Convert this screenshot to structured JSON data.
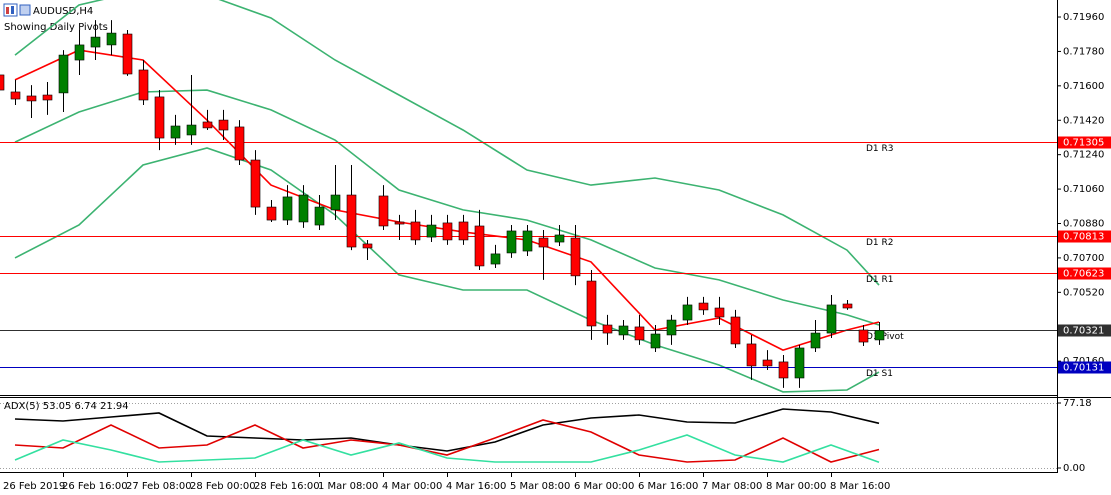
{
  "chart_data": [
    {
      "type": "candlestick",
      "title": "AUDUSD,H4",
      "subtitle": "Showing Daily Pivots",
      "categories": [
        "26 Feb 2019",
        null,
        null,
        null,
        "26 Feb 16:00",
        null,
        null,
        null,
        "27 Feb 08:00",
        null,
        null,
        null,
        "28 Feb 00:00",
        null,
        null,
        null,
        "28 Feb 16:00",
        null,
        null,
        null,
        "1 Mar 08:00",
        null,
        null,
        null,
        "4 Mar 00:00",
        null,
        null,
        null,
        "4 Mar 16:00",
        null,
        null,
        null,
        "5 Mar 08:00",
        null,
        null,
        null,
        "6 Mar 00:00",
        null,
        null,
        null,
        "6 Mar 16:00",
        null,
        null,
        null,
        "7 Mar 08:00",
        null,
        null,
        null,
        "8 Mar 00:00",
        null,
        null,
        null,
        "8 Mar 16:00",
        null,
        null,
        null
      ],
      "open": [
        0.71657,
        0.71568,
        0.71547,
        0.71552,
        0.71563,
        0.71735,
        0.71803,
        0.71814,
        0.71871,
        0.71683,
        0.71542,
        0.71327,
        0.71343,
        0.71411,
        0.71421,
        0.71385,
        0.71212,
        0.70966,
        0.70898,
        0.70888,
        0.70872,
        0.70951,
        0.71029,
        0.70773,
        0.71024,
        0.70888,
        0.70888,
        0.70809,
        0.70883,
        0.70888,
        0.70867,
        0.70668,
        0.70726,
        0.70736,
        0.70804,
        0.70783,
        0.70804,
        0.70579,
        0.70349,
        0.70297,
        0.70339,
        0.70229,
        0.70297,
        0.70375,
        0.70464,
        0.70438,
        0.70391,
        0.7025,
        0.70166,
        0.70156,
        0.70072,
        0.70229,
        0.70307,
        0.70459,
        0.70323,
        0.70271
      ],
      "high": [
        0.71683,
        0.71631,
        0.71604,
        0.7162,
        0.71787,
        0.71892,
        0.71944,
        0.71944,
        0.71892,
        0.71735,
        0.71578,
        0.71448,
        0.71657,
        0.71474,
        0.71474,
        0.71421,
        0.71264,
        0.71003,
        0.71081,
        0.71081,
        0.71029,
        0.71186,
        0.71186,
        0.70794,
        0.71081,
        0.70925,
        0.70951,
        0.70925,
        0.70925,
        0.70925,
        0.70951,
        0.70768,
        0.70872,
        0.70872,
        0.70846,
        0.70872,
        0.70872,
        0.70637,
        0.70402,
        0.70375,
        0.70402,
        0.70349,
        0.70402,
        0.70496,
        0.70496,
        0.70496,
        0.70428,
        0.70297,
        0.70218,
        0.70192,
        0.70245,
        0.70375,
        0.70506,
        0.7048,
        0.70349,
        0.70365
      ],
      "low": [
        0.71552,
        0.715,
        0.71432,
        0.71448,
        0.71463,
        0.71657,
        0.71735,
        0.71761,
        0.71652,
        0.715,
        0.71264,
        0.71291,
        0.71291,
        0.71369,
        0.71317,
        0.71186,
        0.70925,
        0.70888,
        0.70872,
        0.70857,
        0.70846,
        0.70898,
        0.70741,
        0.70689,
        0.70846,
        0.70794,
        0.70768,
        0.70783,
        0.70768,
        0.70768,
        0.70637,
        0.70647,
        0.707,
        0.7071,
        0.70585,
        0.70762,
        0.70558,
        0.70271,
        0.70245,
        0.70271,
        0.70245,
        0.70208,
        0.70245,
        0.70349,
        0.70402,
        0.70349,
        0.70229,
        0.70062,
        0.70114,
        0.7002,
        0.7002,
        0.70208,
        0.70281,
        0.70428,
        0.70239,
        0.70245
      ],
      "close": [
        0.71578,
        0.71531,
        0.71521,
        0.71526,
        0.71761,
        0.71814,
        0.71855,
        0.71876,
        0.71662,
        0.71526,
        0.71327,
        0.7139,
        0.71395,
        0.7138,
        0.71369,
        0.71212,
        0.70966,
        0.70898,
        0.71019,
        0.71029,
        0.70966,
        0.71029,
        0.70757,
        0.70752,
        0.70867,
        0.70877,
        0.70794,
        0.70872,
        0.70794,
        0.70794,
        0.70658,
        0.70721,
        0.70841,
        0.70841,
        0.70757,
        0.7082,
        0.70606,
        0.70344,
        0.70307,
        0.70344,
        0.70271,
        0.70302,
        0.70375,
        0.70454,
        0.70428,
        0.70391,
        0.7025,
        0.70135,
        0.70135,
        0.70072,
        0.70229,
        0.70307,
        0.70454,
        0.70438,
        0.7026,
        0.70321
      ],
      "up_color": "#008000",
      "down_color": "#ff0000",
      "ylim": [
        0.69983,
        0.72049
      ],
      "yticks": [
        {
          "value": 0.7196,
          "label": "0.71960"
        },
        {
          "value": 0.7178,
          "label": "0.71780"
        },
        {
          "value": 0.716,
          "label": "0.71600"
        },
        {
          "value": 0.7142,
          "label": "0.71420"
        },
        {
          "value": 0.7124,
          "label": "0.71240"
        },
        {
          "value": 0.7106,
          "label": "0.71060"
        },
        {
          "value": 0.7088,
          "label": "0.70880"
        },
        {
          "value": 0.707,
          "label": "0.70700"
        },
        {
          "value": 0.7052,
          "label": "0.70520"
        },
        {
          "value": 0.7016,
          "label": "0.70160"
        }
      ],
      "overlays": [
        {
          "type": "line",
          "color": "#3cb371",
          "x": [
            1,
            5,
            9,
            13,
            17,
            21,
            25,
            29,
            33,
            37,
            41,
            45,
            49,
            53,
            55
          ],
          "values": [
            0.71761,
            0.72023,
            0.72101,
            0.72075,
            0.71955,
            0.71735,
            0.71552,
            0.71369,
            0.7116,
            0.71081,
            0.71118,
            0.71055,
            0.70925,
            0.70741,
            0.70558
          ]
        },
        {
          "type": "line",
          "color": "#3cb371",
          "x": [
            1,
            5,
            9,
            13,
            17,
            21,
            25,
            29,
            33,
            37,
            41,
            45,
            49,
            53,
            55
          ],
          "values": [
            0.71306,
            0.71463,
            0.71568,
            0.71578,
            0.71474,
            0.71317,
            0.71055,
            0.70951,
            0.70898,
            0.70794,
            0.70647,
            0.70585,
            0.7048,
            0.70402,
            0.70349
          ]
        },
        {
          "type": "line",
          "color": "#3cb371",
          "x": [
            1,
            5,
            9,
            13,
            17,
            21,
            25,
            29,
            33,
            37,
            41,
            45,
            49,
            53,
            55
          ],
          "values": [
            0.707,
            0.70872,
            0.71186,
            0.71275,
            0.7116,
            0.70925,
            0.70611,
            0.70532,
            0.70532,
            0.70375,
            0.70245,
            0.7014,
            0.69999,
            0.70009,
            0.70103
          ]
        },
        {
          "type": "line",
          "color": "#ff0000",
          "x": [
            1,
            5,
            9,
            13,
            17,
            21,
            25,
            29,
            33,
            37,
            41,
            45,
            49,
            53,
            55
          ],
          "values": [
            0.71631,
            0.71787,
            0.71735,
            0.71421,
            0.71081,
            0.70951,
            0.70888,
            0.70836,
            0.70794,
            0.70679,
            0.70323,
            0.70386,
            0.70218,
            0.70323,
            0.70365
          ]
        }
      ],
      "levels": [
        {
          "label": "D1 R3",
          "value": 0.71305,
          "color": "#ff0000"
        },
        {
          "label": "D1 R2",
          "value": 0.70813,
          "color": "#ff0000"
        },
        {
          "label": "D1 R1",
          "value": 0.70623,
          "color": "#ff0000"
        },
        {
          "label": "D1 Pivot",
          "value": 0.70321,
          "color": "#303030"
        },
        {
          "label": "D1 S1",
          "value": 0.70131,
          "color": "#0000c0"
        }
      ]
    },
    {
      "type": "line",
      "title": "ADX(5) 53.05 6.74 21.94",
      "x": [
        1,
        4,
        7,
        10,
        13,
        16,
        19,
        22,
        25,
        28,
        31,
        34,
        37,
        40,
        43,
        46,
        49,
        52,
        55
      ],
      "series": [
        {
          "color": "#000000",
          "values": [
            58.2,
            55.8,
            60.6,
            65.3,
            38.0,
            35.6,
            33.3,
            35.6,
            27.3,
            20.2,
            30.9,
            51.1,
            59.4,
            62.9,
            54.6,
            53.4,
            70.1,
            66.5,
            53.05
          ]
        },
        {
          "color": "#e00000",
          "values": [
            27.3,
            23.8,
            51.1,
            23.8,
            27.3,
            51.1,
            23.8,
            33.3,
            27.3,
            15.4,
            35.6,
            57.0,
            42.8,
            15.4,
            7.1,
            9.5,
            35.6,
            7.1,
            21.94
          ]
        },
        {
          "color": "#33e0a0",
          "values": [
            9.5,
            33.3,
            21.4,
            7.1,
            9.5,
            11.9,
            33.3,
            15.4,
            29.7,
            11.9,
            7.1,
            7.1,
            7.1,
            21.4,
            39.2,
            15.4,
            7.1,
            27.3,
            6.74
          ]
        }
      ],
      "ylim": [
        -4.75,
        83.12
      ],
      "yticks": [
        77.18,
        {
          "value": 0,
          "label": "0.00"
        }
      ]
    }
  ]
}
